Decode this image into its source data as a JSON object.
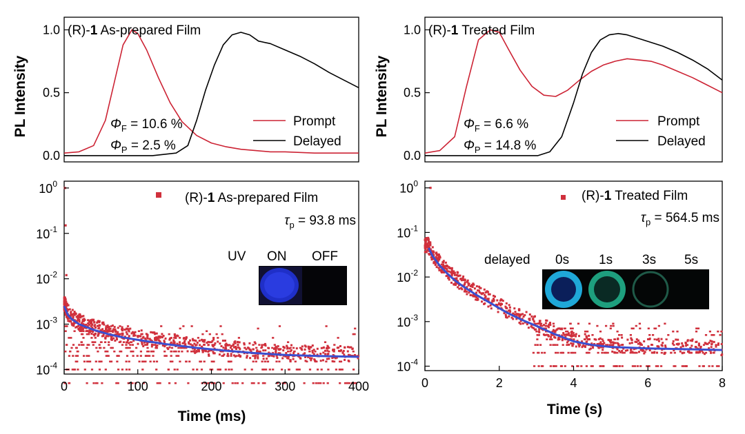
{
  "figure": {
    "shared_ylabel": "PL Intensity",
    "photo_left": {
      "uv_label": "UV",
      "on_label": "ON",
      "off_label": "OFF"
    },
    "photo_right": {
      "delayed_label": "delayed",
      "times": [
        "0s",
        "1s",
        "3s",
        "5s"
      ]
    }
  },
  "colors": {
    "prompt": "#cc2233",
    "delayed": "#000000",
    "fit": "#3a4fd0",
    "decay_points": "#d0303c"
  },
  "chart_data": [
    {
      "id": "spectra_left",
      "type": "line",
      "title": {
        "prefix": "(R)-",
        "compound": "1",
        "suffix": " As-prepared Film"
      },
      "ylabel": "PL Intensity",
      "xlabel": "",
      "xlim": [
        0,
        100
      ],
      "ylim": [
        -0.05,
        1.1
      ],
      "yticks": [
        0.0,
        0.5,
        1.0
      ],
      "ytick_labels": [
        "0.0",
        "0.5",
        "1.0"
      ],
      "legend": {
        "position": "bottom-right",
        "entries": [
          "Prompt",
          "Delayed"
        ]
      },
      "annotations": {
        "phiF": {
          "symbol": "Φ",
          "sub": "F",
          "text": " = 10.6 %"
        },
        "phiP": {
          "symbol": "Φ",
          "sub": "P",
          "text": " = 2.5 %"
        }
      },
      "series": [
        {
          "name": "Prompt",
          "x": [
            0,
            5,
            10,
            14,
            17,
            20,
            23,
            25,
            28,
            32,
            36,
            40,
            45,
            50,
            55,
            60,
            65,
            70,
            75,
            80,
            85,
            90,
            95,
            100
          ],
          "values": [
            0.02,
            0.03,
            0.08,
            0.28,
            0.58,
            0.88,
            1.0,
            0.97,
            0.84,
            0.62,
            0.42,
            0.27,
            0.16,
            0.1,
            0.07,
            0.05,
            0.04,
            0.03,
            0.03,
            0.025,
            0.02,
            0.02,
            0.02,
            0.02
          ]
        },
        {
          "name": "Delayed",
          "x": [
            0,
            30,
            38,
            42,
            45,
            48,
            51,
            54,
            57,
            60,
            63,
            66,
            70,
            75,
            80,
            85,
            90,
            95,
            100
          ],
          "values": [
            0.0,
            0.0,
            0.02,
            0.08,
            0.28,
            0.52,
            0.72,
            0.88,
            0.96,
            0.98,
            0.96,
            0.91,
            0.89,
            0.84,
            0.79,
            0.73,
            0.66,
            0.6,
            0.54
          ]
        }
      ]
    },
    {
      "id": "spectra_right",
      "type": "line",
      "title": {
        "prefix": "(R)-",
        "compound": "1",
        "suffix": " Treated Film"
      },
      "ylabel": "PL Intensity",
      "xlabel": "",
      "xlim": [
        0,
        100
      ],
      "ylim": [
        -0.05,
        1.1
      ],
      "yticks": [
        0.0,
        0.5,
        1.0
      ],
      "ytick_labels": [
        "0.0",
        "0.5",
        "1.0"
      ],
      "legend": {
        "position": "bottom-right",
        "entries": [
          "Prompt",
          "Delayed"
        ]
      },
      "annotations": {
        "phiF": {
          "symbol": "Φ",
          "sub": "F",
          "text": " = 6.6 %"
        },
        "phiP": {
          "symbol": "Φ",
          "sub": "P",
          "text": " = 14.8 %"
        }
      },
      "series": [
        {
          "name": "Prompt",
          "x": [
            0,
            5,
            10,
            14,
            18,
            22,
            25,
            28,
            32,
            36,
            40,
            44,
            48,
            52,
            56,
            60,
            64,
            68,
            72,
            76,
            80,
            85,
            90,
            95,
            100
          ],
          "values": [
            0.02,
            0.04,
            0.15,
            0.55,
            0.92,
            1.0,
            0.98,
            0.85,
            0.68,
            0.55,
            0.48,
            0.47,
            0.52,
            0.6,
            0.67,
            0.72,
            0.75,
            0.77,
            0.76,
            0.75,
            0.72,
            0.67,
            0.62,
            0.56,
            0.5
          ]
        },
        {
          "name": "Delayed",
          "x": [
            0,
            38,
            42,
            46,
            50,
            53,
            56,
            59,
            62,
            65,
            68,
            72,
            76,
            80,
            85,
            90,
            95,
            100
          ],
          "values": [
            0.0,
            0.0,
            0.03,
            0.15,
            0.42,
            0.65,
            0.82,
            0.92,
            0.96,
            0.97,
            0.96,
            0.93,
            0.9,
            0.87,
            0.82,
            0.76,
            0.69,
            0.6
          ]
        }
      ]
    },
    {
      "id": "decay_left",
      "type": "scatter",
      "yscale": "log",
      "title": {
        "prefix": "(R)-",
        "compound": "1",
        "suffix": " As-prepared Film"
      },
      "lifetime": {
        "symbol": "τ",
        "sub": "p",
        "text": " = 93.8 ms"
      },
      "xlabel": "Time (ms)",
      "xlim": [
        0,
        400
      ],
      "xticks": [
        0,
        100,
        200,
        300,
        400
      ],
      "xtick_labels": [
        "0",
        "100",
        "200",
        "300",
        "400"
      ],
      "ylim_log10": [
        -4.1,
        0.15
      ],
      "yticks_exp": [
        0,
        -1,
        -2,
        -3,
        -4
      ],
      "fit": {
        "name": "Fit",
        "x": [
          0,
          5,
          10,
          20,
          40,
          60,
          80,
          100,
          140,
          180,
          220,
          260,
          300,
          340,
          400
        ],
        "values": [
          0.0025,
          0.0016,
          0.0013,
          0.001,
          0.00075,
          0.0006,
          0.00051,
          0.00045,
          0.00036,
          0.0003,
          0.00026,
          0.00023,
          0.00021,
          0.0002,
          0.00019
        ]
      },
      "noise_levels": [
        5e-05,
        0.0001,
        0.00015,
        0.0002,
        0.00025,
        0.0003,
        0.00035,
        0.0004,
        0.0005,
        0.0006,
        0.0007,
        0.0008,
        0.0009
      ],
      "noise_x_range": [
        0,
        400
      ],
      "outliers": {
        "x": [
          1,
          2,
          3,
          2,
          4
        ],
        "values": [
          1.0,
          0.15,
          0.012,
          0.0035,
          0.0028
        ]
      }
    },
    {
      "id": "decay_right",
      "type": "scatter",
      "yscale": "log",
      "title": {
        "prefix": "(R)-",
        "compound": "1",
        "suffix": " Treated Film"
      },
      "lifetime": {
        "symbol": "τ",
        "sub": "p",
        "text": " = 564.5 ms"
      },
      "xlabel": "Time (s)",
      "xlim": [
        0,
        8
      ],
      "xticks": [
        0,
        2,
        4,
        6,
        8
      ],
      "xtick_labels": [
        "0",
        "2",
        "4",
        "6",
        "8"
      ],
      "ylim_log10": [
        -4.1,
        0.15
      ],
      "yticks_exp": [
        0,
        -1,
        -2,
        -3,
        -4
      ],
      "fit": {
        "name": "Fit",
        "x": [
          0.1,
          0.2,
          0.4,
          0.6,
          0.8,
          1.0,
          1.4,
          1.8,
          2.2,
          2.6,
          3.0,
          3.5,
          4.0,
          4.5,
          5.0,
          6.0,
          7.0,
          8.0
        ],
        "values": [
          0.045,
          0.03,
          0.018,
          0.012,
          0.0085,
          0.0064,
          0.0039,
          0.0025,
          0.0016,
          0.0011,
          0.0008,
          0.00052,
          0.00036,
          0.0003,
          0.00027,
          0.00025,
          0.00024,
          0.00023
        ]
      },
      "noise_levels": [
        0.0001,
        0.0002,
        0.0003,
        0.0004,
        0.0005,
        0.0006,
        0.0007,
        0.0008,
        0.0009
      ],
      "noise_x_range": [
        2.9,
        8.0
      ],
      "outliers": {
        "x": [
          0.15,
          0.1,
          0.12
        ],
        "values": [
          1.0,
          0.05,
          0.045
        ]
      }
    }
  ]
}
